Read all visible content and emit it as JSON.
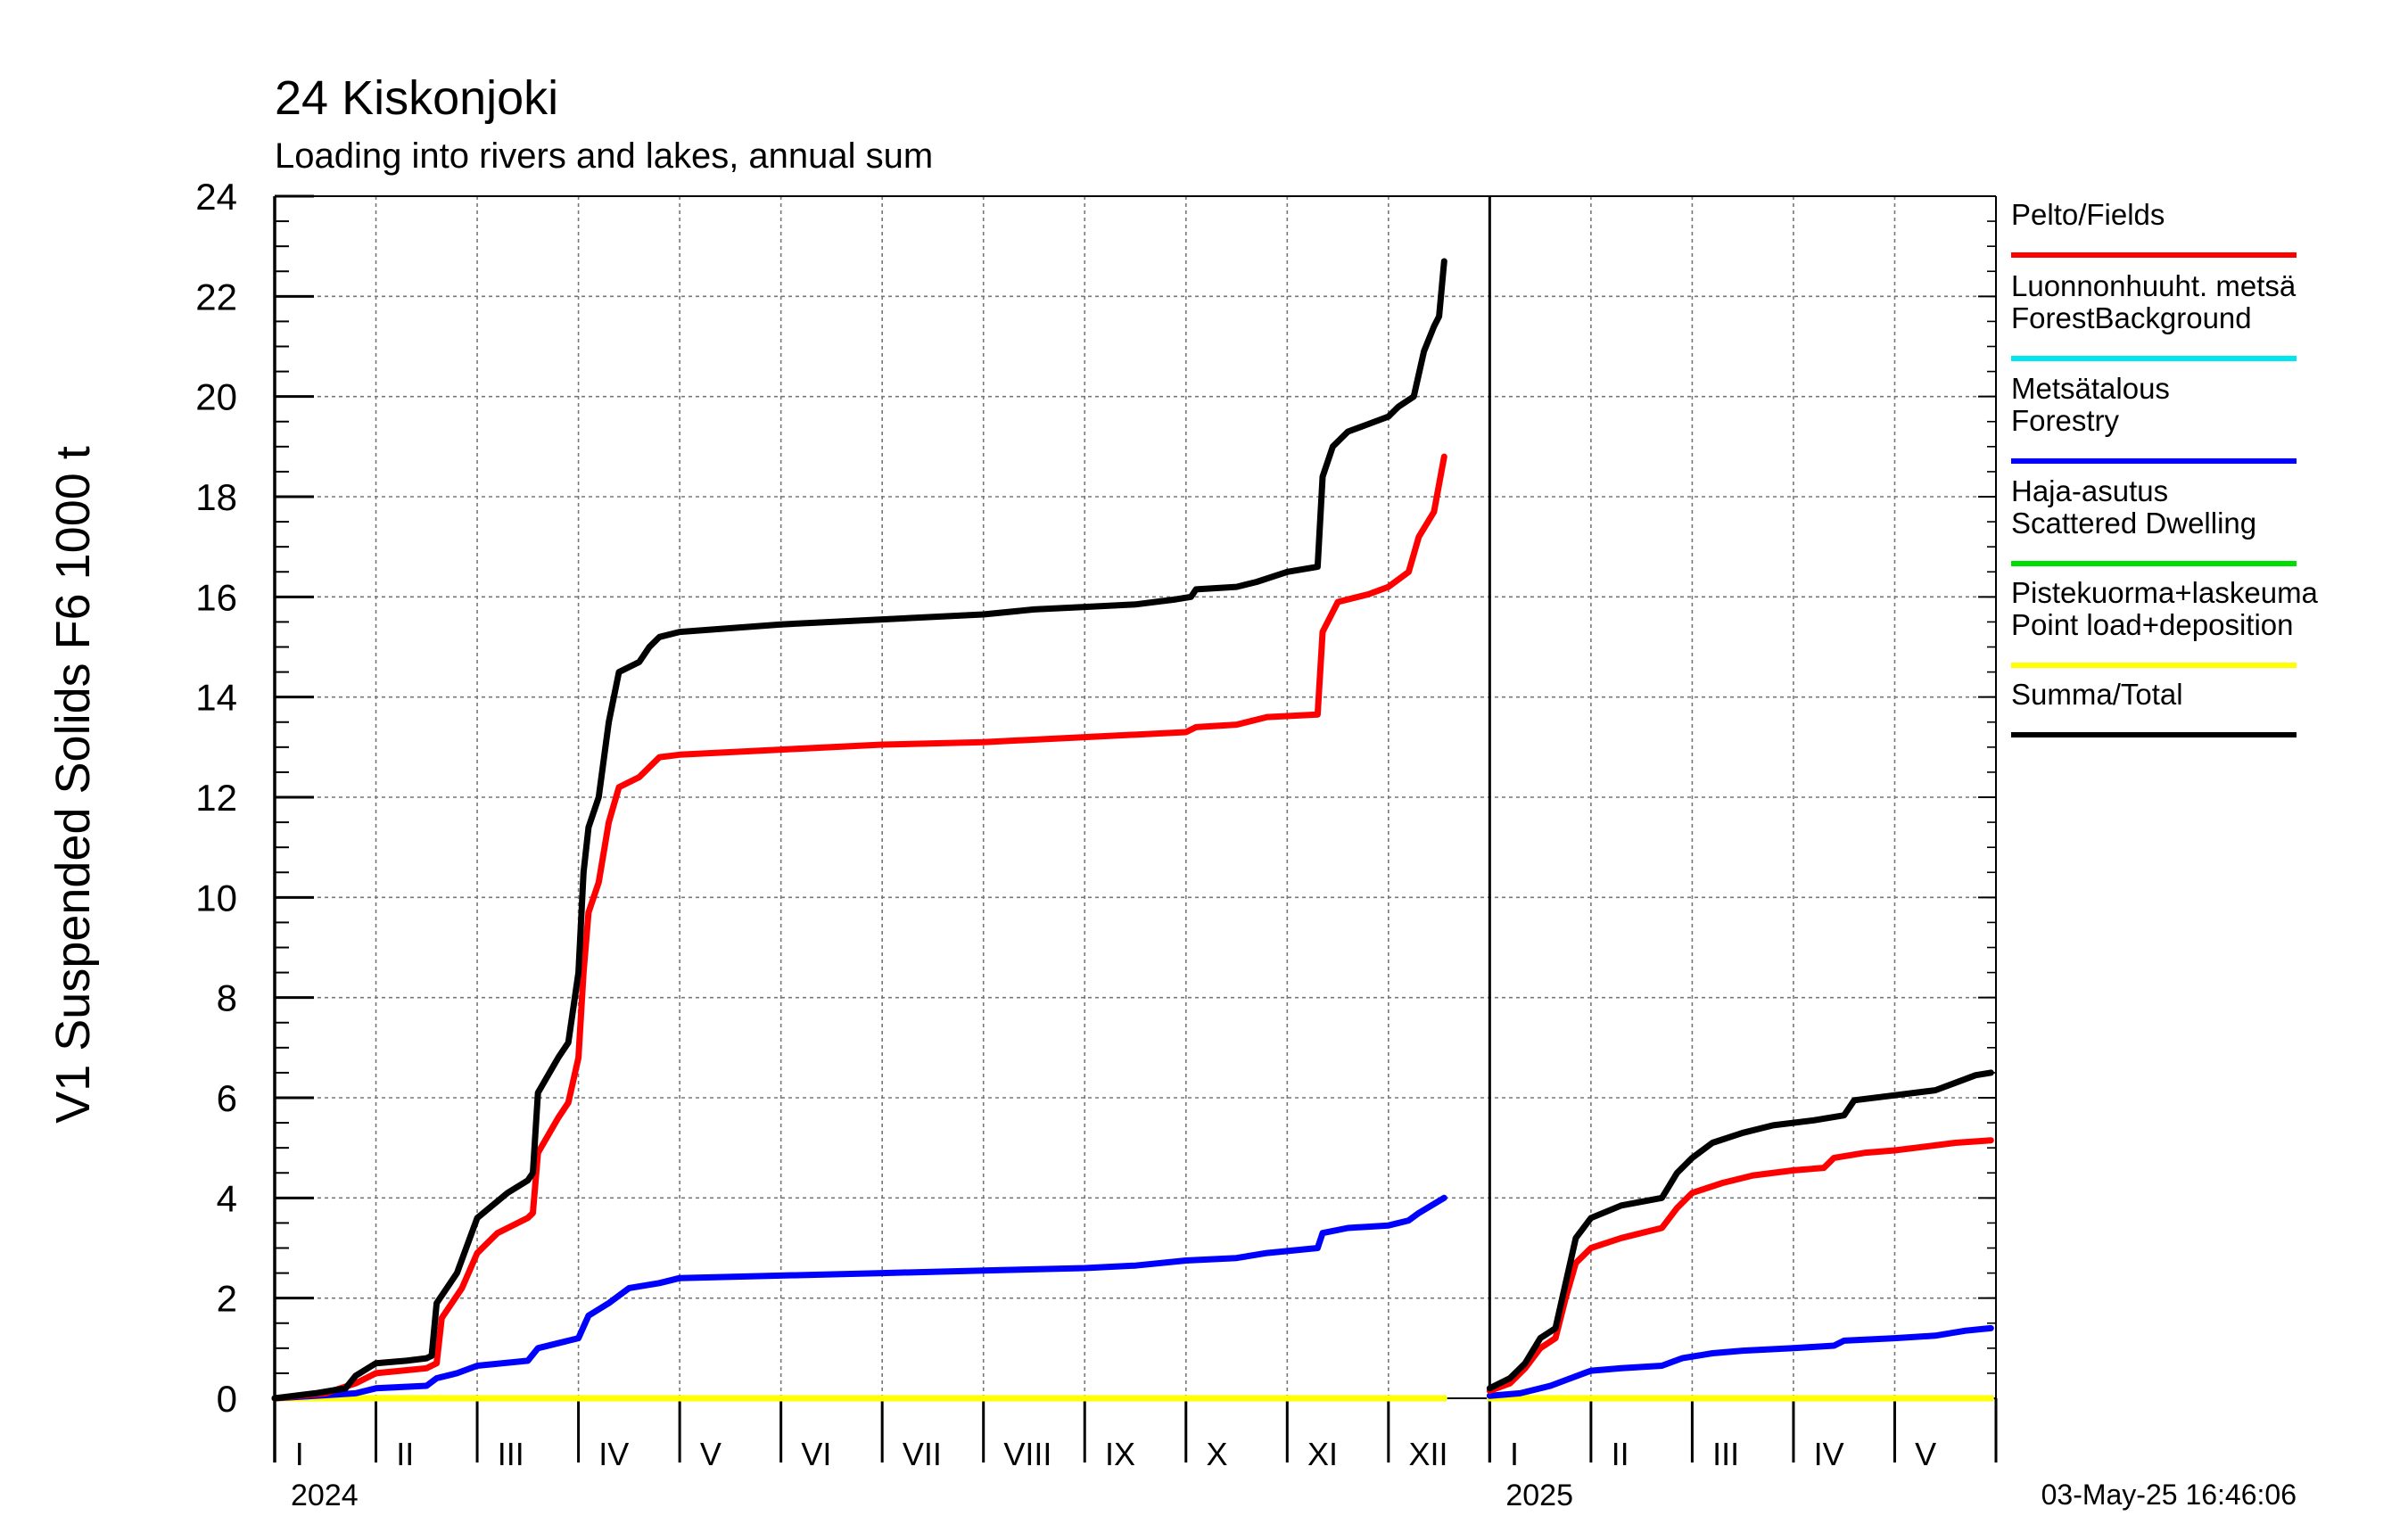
{
  "chart_data": {
    "type": "line",
    "title": "24 Kiskonjoki",
    "subtitle": "Loading into rivers and lakes, annual sum",
    "ylabel": "V1 Suspended Solids F6 1000 t",
    "ylim": [
      0,
      24
    ],
    "yticks": [
      0,
      2,
      4,
      6,
      8,
      10,
      12,
      14,
      16,
      18,
      20,
      22,
      24
    ],
    "x_unit": "months since 1 Jan 2024",
    "xlim": [
      0,
      17
    ],
    "month_labels": [
      {
        "label": "I",
        "x": 0
      },
      {
        "label": "II",
        "x": 1
      },
      {
        "label": "III",
        "x": 2
      },
      {
        "label": "IV",
        "x": 3
      },
      {
        "label": "V",
        "x": 4
      },
      {
        "label": "VI",
        "x": 5
      },
      {
        "label": "VII",
        "x": 6
      },
      {
        "label": "VIII",
        "x": 7
      },
      {
        "label": "IX",
        "x": 8
      },
      {
        "label": "X",
        "x": 9
      },
      {
        "label": "XI",
        "x": 10
      },
      {
        "label": "XII",
        "x": 11
      },
      {
        "label": "I",
        "x": 12
      },
      {
        "label": "II",
        "x": 13
      },
      {
        "label": "III",
        "x": 14
      },
      {
        "label": "IV",
        "x": 15
      },
      {
        "label": "V",
        "x": 16
      }
    ],
    "year_labels": [
      {
        "label": "2024",
        "x": 0
      },
      {
        "label": "2025",
        "x": 12
      }
    ],
    "grid": true,
    "legend_placement": "right",
    "series": [
      {
        "name": "Pelto/Fields",
        "color": "#ff0000",
        "segments": [
          [
            [
              0,
              0
            ],
            [
              0.5,
              0.1
            ],
            [
              0.8,
              0.3
            ],
            [
              1,
              0.5
            ],
            [
              1.5,
              0.6
            ],
            [
              1.6,
              0.7
            ],
            [
              1.65,
              1.6
            ],
            [
              1.85,
              2.2
            ],
            [
              2,
              2.9
            ],
            [
              2.2,
              3.3
            ],
            [
              2.5,
              3.6
            ],
            [
              2.55,
              3.7
            ],
            [
              2.6,
              4.9
            ],
            [
              2.8,
              5.6
            ],
            [
              2.9,
              5.9
            ],
            [
              3.0,
              6.8
            ],
            [
              3.05,
              8.5
            ],
            [
              3.1,
              9.7
            ],
            [
              3.2,
              10.3
            ],
            [
              3.3,
              11.5
            ],
            [
              3.4,
              12.2
            ],
            [
              3.6,
              12.4
            ],
            [
              3.8,
              12.8
            ],
            [
              4,
              12.85
            ],
            [
              5,
              12.95
            ],
            [
              6,
              13.05
            ],
            [
              7,
              13.1
            ],
            [
              8,
              13.2
            ],
            [
              9,
              13.3
            ],
            [
              9.1,
              13.4
            ],
            [
              9.5,
              13.45
            ],
            [
              9.8,
              13.6
            ],
            [
              10.3,
              13.65
            ],
            [
              10.35,
              15.3
            ],
            [
              10.5,
              15.9
            ],
            [
              10.8,
              16.05
            ],
            [
              11.0,
              16.2
            ],
            [
              11.2,
              16.5
            ],
            [
              11.3,
              17.2
            ],
            [
              11.45,
              17.7
            ],
            [
              11.55,
              18.8
            ]
          ],
          [
            [
              12,
              0.15
            ],
            [
              12.2,
              0.3
            ],
            [
              12.35,
              0.6
            ],
            [
              12.5,
              1.0
            ],
            [
              12.65,
              1.2
            ],
            [
              12.75,
              2.0
            ],
            [
              12.85,
              2.7
            ],
            [
              13,
              3.0
            ],
            [
              13.3,
              3.2
            ],
            [
              13.7,
              3.4
            ],
            [
              13.85,
              3.8
            ],
            [
              14,
              4.1
            ],
            [
              14.3,
              4.3
            ],
            [
              14.6,
              4.45
            ],
            [
              15,
              4.55
            ],
            [
              15.3,
              4.6
            ],
            [
              15.4,
              4.8
            ],
            [
              15.7,
              4.9
            ],
            [
              16,
              4.95
            ],
            [
              16.4,
              5.05
            ],
            [
              16.6,
              5.1
            ],
            [
              16.95,
              5.15
            ]
          ]
        ]
      },
      {
        "name": "Luonnonhuuht. metsä ForestBackground",
        "color": "#00e5ee",
        "segments": [
          [
            [
              0,
              0
            ],
            [
              11.55,
              0
            ]
          ],
          [
            [
              12,
              0
            ],
            [
              16.95,
              0
            ]
          ]
        ]
      },
      {
        "name": "Metsätalous Forestry",
        "color": "#0000ff",
        "segments": [
          [
            [
              0,
              0
            ],
            [
              0.8,
              0.1
            ],
            [
              1,
              0.2
            ],
            [
              1.5,
              0.25
            ],
            [
              1.6,
              0.4
            ],
            [
              1.8,
              0.5
            ],
            [
              2,
              0.65
            ],
            [
              2.5,
              0.75
            ],
            [
              2.6,
              1.0
            ],
            [
              2.8,
              1.1
            ],
            [
              3,
              1.2
            ],
            [
              3.1,
              1.65
            ],
            [
              3.3,
              1.9
            ],
            [
              3.5,
              2.2
            ],
            [
              3.8,
              2.3
            ],
            [
              4,
              2.4
            ],
            [
              5,
              2.45
            ],
            [
              6,
              2.5
            ],
            [
              7,
              2.55
            ],
            [
              8,
              2.6
            ],
            [
              8.5,
              2.65
            ],
            [
              9,
              2.75
            ],
            [
              9.5,
              2.8
            ],
            [
              9.8,
              2.9
            ],
            [
              10.3,
              3.0
            ],
            [
              10.35,
              3.3
            ],
            [
              10.6,
              3.4
            ],
            [
              11,
              3.45
            ],
            [
              11.2,
              3.55
            ],
            [
              11.3,
              3.7
            ],
            [
              11.55,
              4.0
            ]
          ],
          [
            [
              12,
              0.05
            ],
            [
              12.3,
              0.1
            ],
            [
              12.6,
              0.25
            ],
            [
              12.8,
              0.4
            ],
            [
              13,
              0.55
            ],
            [
              13.3,
              0.6
            ],
            [
              13.7,
              0.65
            ],
            [
              13.9,
              0.8
            ],
            [
              14.2,
              0.9
            ],
            [
              14.5,
              0.95
            ],
            [
              15,
              1.0
            ],
            [
              15.4,
              1.05
            ],
            [
              15.5,
              1.15
            ],
            [
              16,
              1.2
            ],
            [
              16.4,
              1.25
            ],
            [
              16.7,
              1.35
            ],
            [
              16.95,
              1.4
            ]
          ]
        ]
      },
      {
        "name": "Haja-asutus Scattered Dwelling",
        "color": "#00dd00",
        "segments": [
          [
            [
              0,
              0
            ],
            [
              11.55,
              0
            ]
          ],
          [
            [
              12,
              0
            ],
            [
              16.95,
              0
            ]
          ]
        ]
      },
      {
        "name": "Pistekuorma+laskeuma Point load+deposition",
        "color": "#ffff00",
        "segments": [
          [
            [
              0,
              0
            ],
            [
              11.55,
              0
            ]
          ],
          [
            [
              12,
              0
            ],
            [
              16.95,
              0
            ]
          ]
        ]
      },
      {
        "name": "Summa/Total",
        "color": "#000000",
        "segments": [
          [
            [
              0,
              0
            ],
            [
              0.4,
              0.1
            ],
            [
              0.7,
              0.2
            ],
            [
              0.8,
              0.45
            ],
            [
              1,
              0.7
            ],
            [
              1.3,
              0.75
            ],
            [
              1.5,
              0.8
            ],
            [
              1.55,
              0.85
            ],
            [
              1.6,
              1.9
            ],
            [
              1.8,
              2.5
            ],
            [
              2,
              3.6
            ],
            [
              2.3,
              4.1
            ],
            [
              2.5,
              4.35
            ],
            [
              2.55,
              4.5
            ],
            [
              2.6,
              6.1
            ],
            [
              2.8,
              6.8
            ],
            [
              2.9,
              7.1
            ],
            [
              3,
              8.5
            ],
            [
              3.05,
              10.5
            ],
            [
              3.1,
              11.4
            ],
            [
              3.2,
              12.0
            ],
            [
              3.3,
              13.5
            ],
            [
              3.4,
              14.5
            ],
            [
              3.6,
              14.7
            ],
            [
              3.7,
              15.0
            ],
            [
              3.8,
              15.2
            ],
            [
              4,
              15.3
            ],
            [
              5,
              15.45
            ],
            [
              6,
              15.55
            ],
            [
              7,
              15.65
            ],
            [
              7.5,
              15.75
            ],
            [
              8,
              15.8
            ],
            [
              8.5,
              15.85
            ],
            [
              8.9,
              15.95
            ],
            [
              9.05,
              16.0
            ],
            [
              9.1,
              16.15
            ],
            [
              9.5,
              16.2
            ],
            [
              9.7,
              16.3
            ],
            [
              10,
              16.5
            ],
            [
              10.3,
              16.6
            ],
            [
              10.35,
              18.4
            ],
            [
              10.45,
              19.0
            ],
            [
              10.6,
              19.3
            ],
            [
              10.8,
              19.45
            ],
            [
              11,
              19.6
            ],
            [
              11.1,
              19.8
            ],
            [
              11.25,
              20.0
            ],
            [
              11.35,
              20.9
            ],
            [
              11.45,
              21.4
            ],
            [
              11.5,
              21.6
            ],
            [
              11.55,
              22.7
            ]
          ],
          [
            [
              12,
              0.2
            ],
            [
              12.2,
              0.4
            ],
            [
              12.35,
              0.7
            ],
            [
              12.5,
              1.2
            ],
            [
              12.65,
              1.4
            ],
            [
              12.75,
              2.3
            ],
            [
              12.85,
              3.2
            ],
            [
              13,
              3.6
            ],
            [
              13.3,
              3.85
            ],
            [
              13.7,
              4.0
            ],
            [
              13.85,
              4.5
            ],
            [
              14,
              4.8
            ],
            [
              14.2,
              5.1
            ],
            [
              14.5,
              5.3
            ],
            [
              14.8,
              5.45
            ],
            [
              15.2,
              5.55
            ],
            [
              15.5,
              5.65
            ],
            [
              15.6,
              5.95
            ],
            [
              16,
              6.05
            ],
            [
              16.4,
              6.15
            ],
            [
              16.6,
              6.3
            ],
            [
              16.8,
              6.45
            ],
            [
              16.95,
              6.5
            ]
          ]
        ]
      }
    ]
  },
  "timestamp": "03-May-25 16:46:06"
}
